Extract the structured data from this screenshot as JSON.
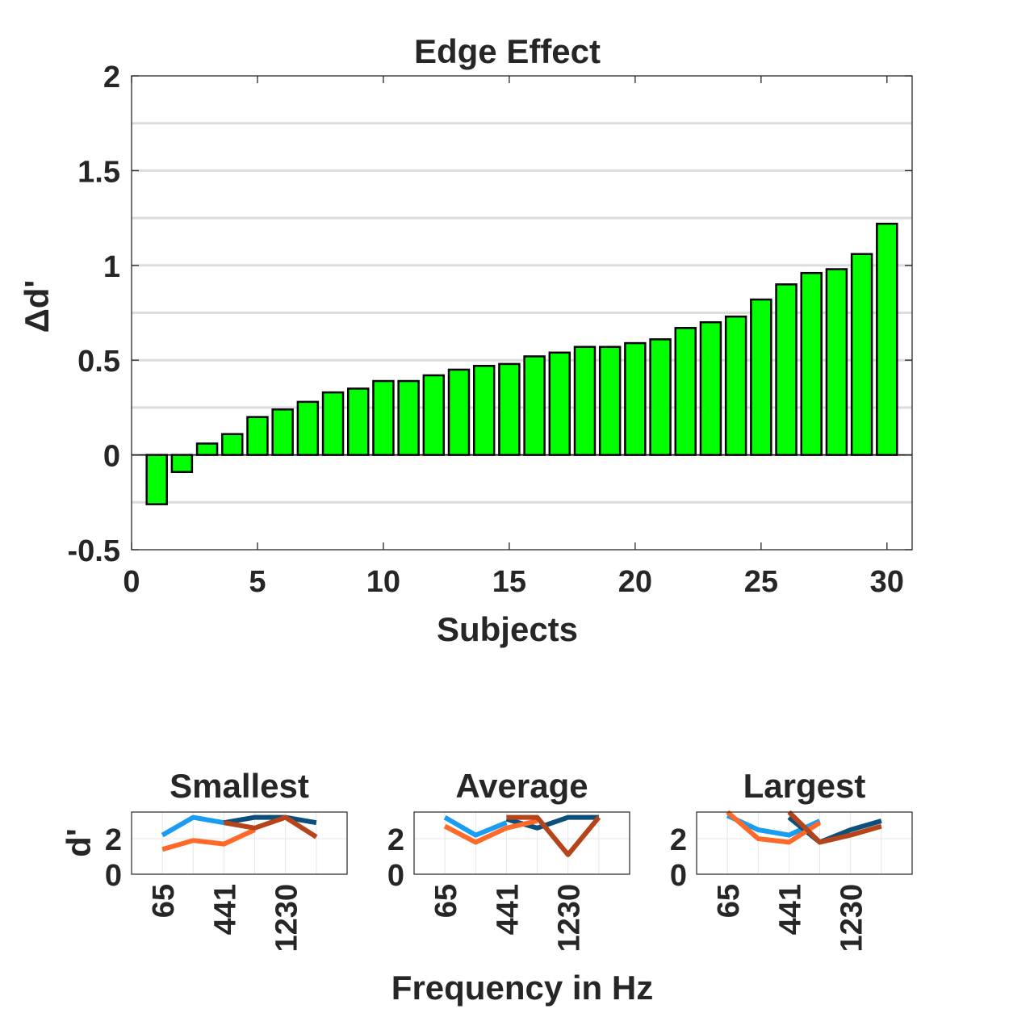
{
  "colors": {
    "bar_fill": "#00ff00",
    "bar_edge": "#000000",
    "grid": "#dcdcdc",
    "axis": "#262626",
    "line_light_blue": "#1a9cf0",
    "line_dark_blue": "#0b4f7a",
    "line_orange": "#ff6a2a",
    "line_dark_orange": "#b5441a"
  },
  "chart_data": [
    {
      "type": "bar",
      "title": "Edge Effect",
      "xlabel": "Subjects",
      "ylabel": "Δd'",
      "xlim": [
        0,
        31
      ],
      "ylim": [
        -0.5,
        2
      ],
      "xticks": [
        0,
        5,
        10,
        15,
        20,
        25,
        30
      ],
      "yticks": [
        -0.5,
        0,
        0.5,
        1,
        1.5,
        2
      ],
      "ytick_labels": [
        "-0.5",
        "0",
        "0.5",
        "1",
        "1.5",
        "2"
      ],
      "grid": "horizontal-minor",
      "x": [
        1,
        2,
        3,
        4,
        5,
        6,
        7,
        8,
        9,
        10,
        11,
        12,
        13,
        14,
        15,
        16,
        17,
        18,
        19,
        20,
        21,
        22,
        23,
        24,
        25,
        26,
        27,
        28,
        29,
        30
      ],
      "values": [
        -0.26,
        -0.09,
        0.06,
        0.11,
        0.2,
        0.24,
        0.28,
        0.33,
        0.35,
        0.39,
        0.39,
        0.42,
        0.45,
        0.47,
        0.48,
        0.52,
        0.54,
        0.57,
        0.57,
        0.59,
        0.61,
        0.67,
        0.7,
        0.73,
        0.82,
        0.9,
        0.96,
        0.98,
        1.06,
        1.22
      ]
    },
    {
      "type": "line",
      "title": "Smallest",
      "ylabel": "d'",
      "ylim": [
        0,
        3.5
      ],
      "yticks": [
        0,
        2
      ],
      "xticks": [
        1,
        3,
        5
      ],
      "xtick_labels": [
        "65",
        "441",
        "1230"
      ],
      "x": [
        1,
        2,
        3,
        4,
        5,
        6
      ],
      "series": [
        {
          "color": "#1a9cf0",
          "x": [
            1,
            2,
            3
          ],
          "values": [
            2.2,
            3.2,
            2.9
          ]
        },
        {
          "color": "#0b4f7a",
          "x": [
            3,
            4,
            5,
            6
          ],
          "values": [
            2.9,
            3.2,
            3.2,
            2.9
          ]
        },
        {
          "color": "#ff6a2a",
          "x": [
            1,
            2,
            3,
            4
          ],
          "values": [
            1.4,
            1.9,
            1.7,
            2.5
          ]
        },
        {
          "color": "#b5441a",
          "x": [
            3,
            4,
            5,
            6
          ],
          "values": [
            2.9,
            2.6,
            3.2,
            2.1
          ]
        }
      ]
    },
    {
      "type": "line",
      "title": "Average",
      "ylabel": "",
      "ylim": [
        0,
        3.5
      ],
      "yticks": [
        0,
        2
      ],
      "xticks": [
        1,
        3,
        5
      ],
      "xtick_labels": [
        "65",
        "441",
        "1230"
      ],
      "x": [
        1,
        2,
        3,
        4,
        5,
        6
      ],
      "series": [
        {
          "color": "#1a9cf0",
          "x": [
            1,
            2,
            3
          ],
          "values": [
            3.2,
            2.2,
            2.9
          ]
        },
        {
          "color": "#0b4f7a",
          "x": [
            3,
            4,
            5,
            6
          ],
          "values": [
            3.1,
            2.6,
            3.2,
            3.2
          ]
        },
        {
          "color": "#ff6a2a",
          "x": [
            1,
            2,
            3,
            4
          ],
          "values": [
            2.7,
            1.8,
            2.6,
            3.0
          ]
        },
        {
          "color": "#b5441a",
          "x": [
            3,
            4,
            5,
            6
          ],
          "values": [
            3.2,
            3.2,
            1.1,
            3.2
          ]
        }
      ]
    },
    {
      "type": "line",
      "title": "Largest",
      "ylabel": "",
      "ylim": [
        0,
        3.5
      ],
      "yticks": [
        0,
        2
      ],
      "xticks": [
        1,
        3,
        5
      ],
      "xtick_labels": [
        "65",
        "441",
        "1230"
      ],
      "x": [
        1,
        2,
        3,
        4,
        5,
        6
      ],
      "series": [
        {
          "color": "#1a9cf0",
          "x": [
            1,
            2,
            3,
            4
          ],
          "values": [
            3.3,
            2.5,
            2.2,
            3.0
          ]
        },
        {
          "color": "#0b4f7a",
          "x": [
            3,
            4,
            5,
            6
          ],
          "values": [
            3.2,
            1.8,
            2.5,
            3.0
          ]
        },
        {
          "color": "#ff6a2a",
          "x": [
            1,
            2,
            3,
            4
          ],
          "values": [
            3.5,
            2.0,
            1.8,
            2.9
          ]
        },
        {
          "color": "#b5441a",
          "x": [
            3,
            4,
            5,
            6
          ],
          "values": [
            3.5,
            1.8,
            2.2,
            2.7
          ]
        }
      ]
    }
  ],
  "shared_xlabel": "Frequency in Hz"
}
